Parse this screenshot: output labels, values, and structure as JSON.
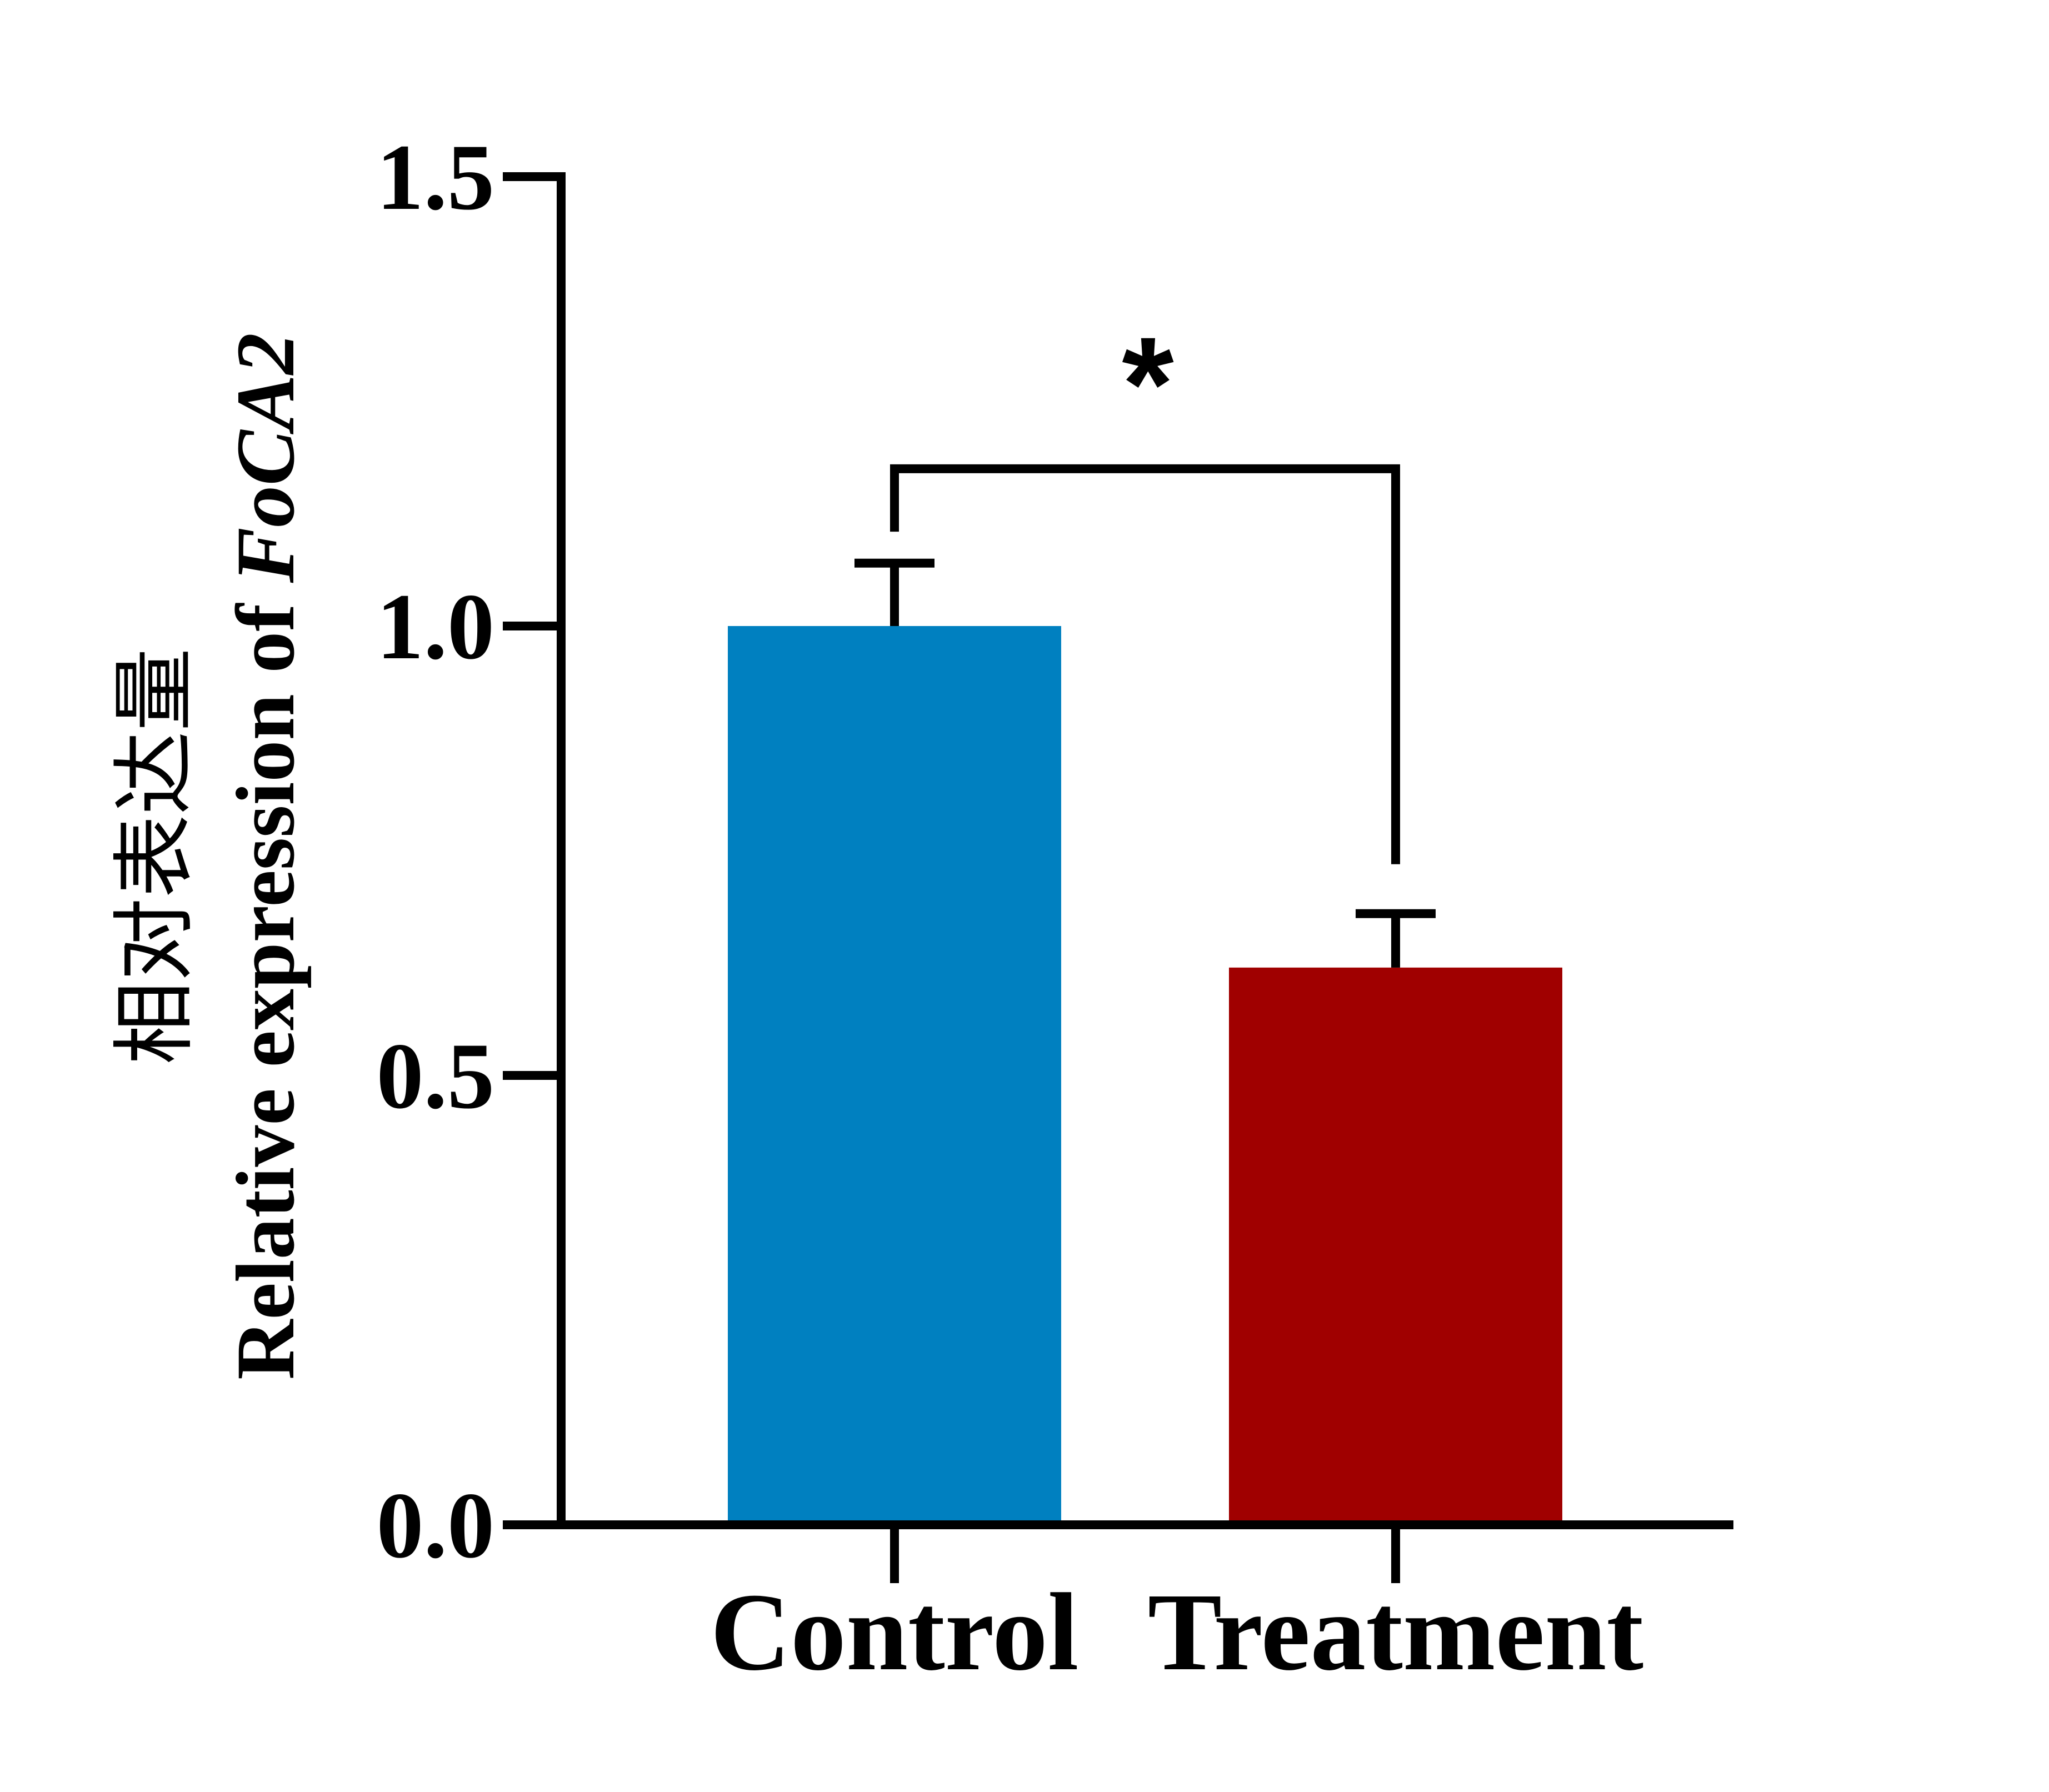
{
  "chart_data": {
    "type": "bar",
    "categories": [
      "Control",
      "Treatment"
    ],
    "values": [
      1.0,
      0.62
    ],
    "errors": [
      0.07,
      0.06
    ],
    "colors": [
      "#0080C0",
      "#A00000"
    ],
    "ylabel_cn": "相对表达量",
    "ylabel_en": "Relative expression of ",
    "ylabel_gene": "FoCA2",
    "ylim": [
      0,
      1.5
    ],
    "yticks": [
      0.0,
      0.5,
      1.0,
      1.5
    ],
    "ytick_labels": [
      "0.0",
      "0.5",
      "1.0",
      "1.5"
    ],
    "significance": {
      "label": "*",
      "pair": [
        0,
        1
      ]
    },
    "grid": false
  }
}
